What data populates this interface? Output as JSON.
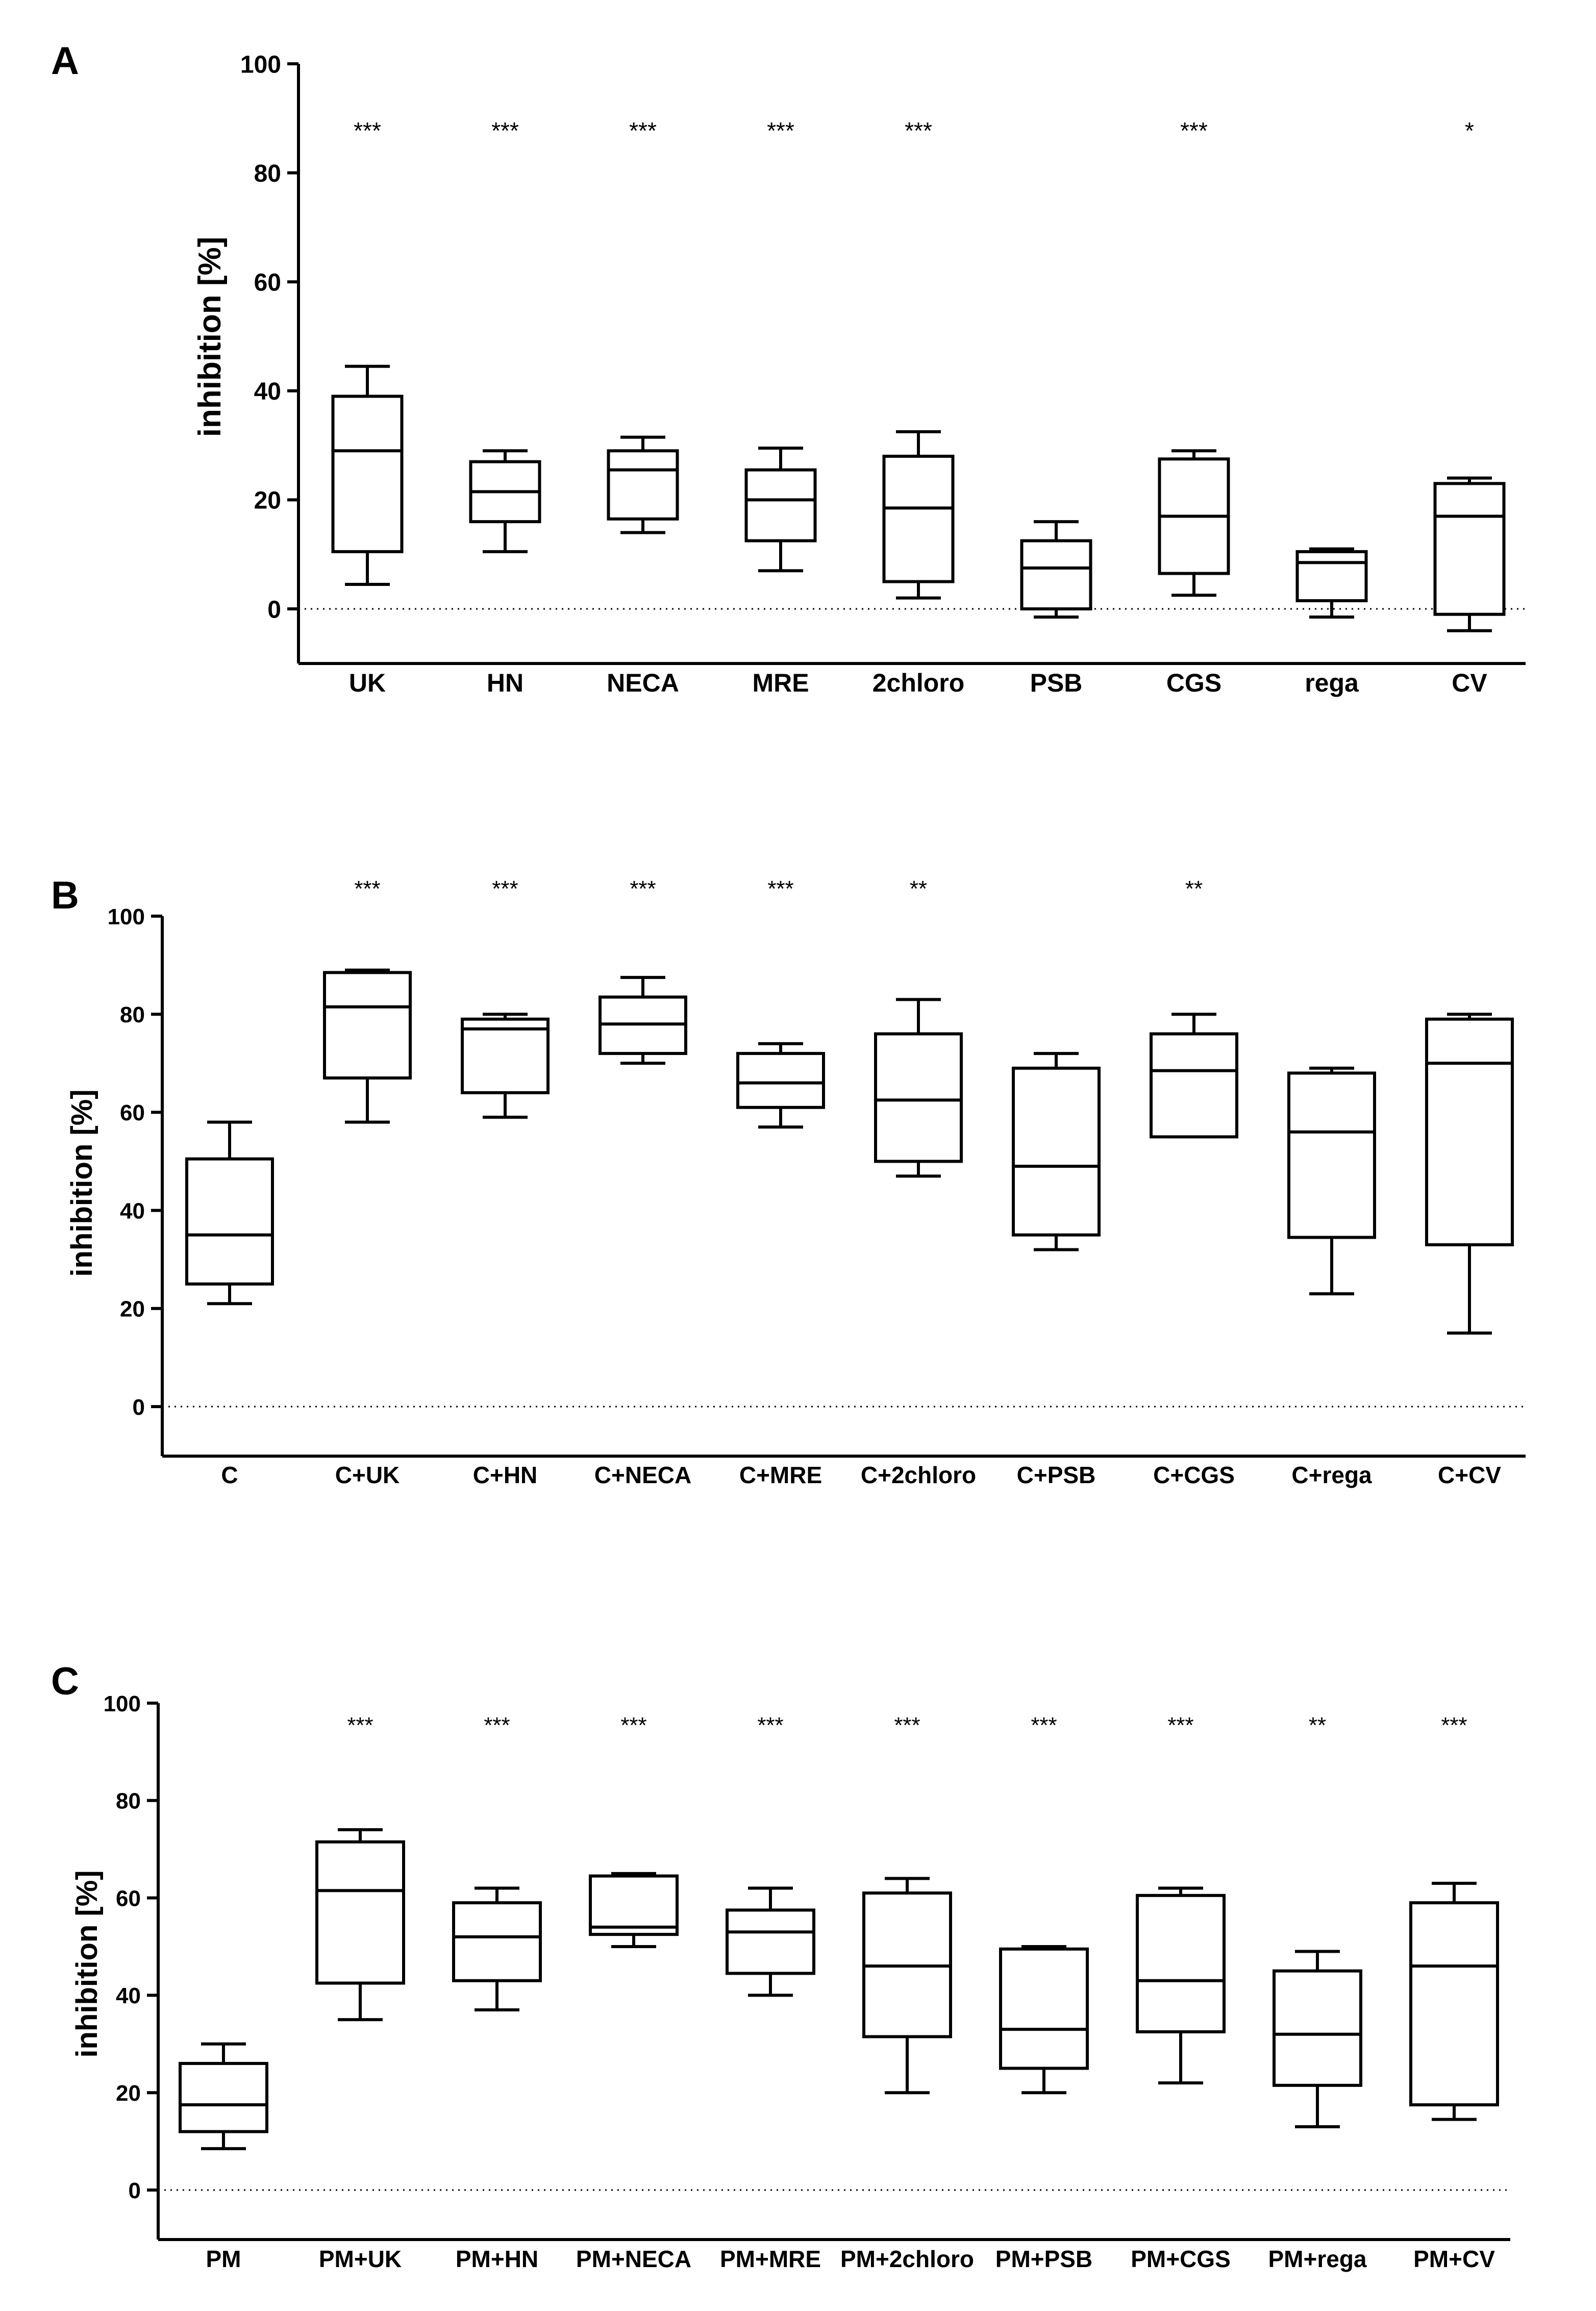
{
  "chart_data": [
    {
      "panel": "A",
      "type": "boxplot",
      "ylabel": "inhibition [%]",
      "ylim": [
        -10,
        100
      ],
      "yticks": [
        0,
        20,
        40,
        60,
        80,
        100
      ],
      "reference_line": 0,
      "categories": [
        "UK",
        "HN",
        "NECA",
        "MRE",
        "2chloro",
        "PSB",
        "CGS",
        "rega",
        "CV"
      ],
      "boxes": [
        {
          "min": 4.5,
          "q1": 10.5,
          "median": 29,
          "q3": 39,
          "max": 44.5
        },
        {
          "min": 10.5,
          "q1": 16,
          "median": 21.5,
          "q3": 27,
          "max": 29
        },
        {
          "min": 14,
          "q1": 16.5,
          "median": 25.5,
          "q3": 29,
          "max": 31.5
        },
        {
          "min": 7,
          "q1": 12.5,
          "median": 20,
          "q3": 25.5,
          "max": 29.5
        },
        {
          "min": 2,
          "q1": 5,
          "median": 18.5,
          "q3": 28,
          "max": 32.5
        },
        {
          "min": -1.5,
          "q1": 0,
          "median": 7.5,
          "q3": 12.5,
          "max": 16
        },
        {
          "min": 2.5,
          "q1": 6.5,
          "median": 17,
          "q3": 27.5,
          "max": 29
        },
        {
          "min": -1.5,
          "q1": 1.5,
          "median": 8.5,
          "q3": 10.5,
          "max": 11
        },
        {
          "min": -4,
          "q1": -1,
          "median": 17,
          "q3": 23,
          "max": 24
        }
      ],
      "significance": [
        "***",
        "***",
        "***",
        "***",
        "***",
        "",
        "***",
        "",
        "*"
      ]
    },
    {
      "panel": "B",
      "type": "boxplot",
      "ylabel": "inhibition [%]",
      "ylim": [
        -10,
        100
      ],
      "yticks": [
        0,
        20,
        40,
        60,
        80,
        100
      ],
      "reference_line": 0,
      "categories": [
        "C",
        "C+UK",
        "C+HN",
        "C+NECA",
        "C+MRE",
        "C+2chloro",
        "C+PSB",
        "C+CGS",
        "C+rega",
        "C+CV"
      ],
      "boxes": [
        {
          "min": 21,
          "q1": 25,
          "median": 35,
          "q3": 50.5,
          "max": 58
        },
        {
          "min": 58,
          "q1": 67,
          "median": 81.5,
          "q3": 88.5,
          "max": 89
        },
        {
          "min": 59,
          "q1": 64,
          "median": 77,
          "q3": 79,
          "max": 80
        },
        {
          "min": 70,
          "q1": 72,
          "median": 78,
          "q3": 83.5,
          "max": 87.5
        },
        {
          "min": 57,
          "q1": 61,
          "median": 66,
          "q3": 72,
          "max": 74
        },
        {
          "min": 47,
          "q1": 50,
          "median": 62.5,
          "q3": 76,
          "max": 83
        },
        {
          "min": 32,
          "q1": 35,
          "median": 49,
          "q3": 69,
          "max": 72
        },
        {
          "min": 55,
          "q1": 55,
          "median": 68.5,
          "q3": 76,
          "max": 80
        },
        {
          "min": 23,
          "q1": 34.5,
          "median": 56,
          "q3": 68,
          "max": 69
        },
        {
          "min": 15,
          "q1": 33,
          "median": 70,
          "q3": 79,
          "max": 80
        }
      ],
      "significance": [
        "",
        "***",
        "***",
        "***",
        "***",
        "**",
        "",
        "**",
        "",
        ""
      ]
    },
    {
      "panel": "C",
      "type": "boxplot",
      "ylabel": "inhibition [%]",
      "ylim": [
        -10,
        100
      ],
      "yticks": [
        0,
        20,
        40,
        60,
        80,
        100
      ],
      "reference_line": 0,
      "categories": [
        "PM",
        "PM+UK",
        "PM+HN",
        "PM+NECA",
        "PM+MRE",
        "PM+2chloro",
        "PM+PSB",
        "PM+CGS",
        "PM+rega",
        "PM+CV"
      ],
      "boxes": [
        {
          "min": 8.5,
          "q1": 12,
          "median": 17.5,
          "q3": 26,
          "max": 30
        },
        {
          "min": 35,
          "q1": 42.5,
          "median": 61.5,
          "q3": 71.5,
          "max": 74
        },
        {
          "min": 37,
          "q1": 43,
          "median": 52,
          "q3": 59,
          "max": 62
        },
        {
          "min": 50,
          "q1": 52.5,
          "median": 54,
          "q3": 64.5,
          "max": 65
        },
        {
          "min": 40,
          "q1": 44.5,
          "median": 53,
          "q3": 57.5,
          "max": 62
        },
        {
          "min": 20,
          "q1": 31.5,
          "median": 46,
          "q3": 61,
          "max": 64
        },
        {
          "min": 20,
          "q1": 25,
          "median": 33,
          "q3": 49.5,
          "max": 50
        },
        {
          "min": 22,
          "q1": 32.5,
          "median": 43,
          "q3": 60.5,
          "max": 62
        },
        {
          "min": 13,
          "q1": 21.5,
          "median": 32,
          "q3": 45,
          "max": 49
        },
        {
          "min": 14.5,
          "q1": 17.5,
          "median": 46,
          "q3": 59,
          "max": 63
        }
      ],
      "significance": [
        "",
        "***",
        "***",
        "***",
        "***",
        "***",
        "***",
        "***",
        "**",
        "***"
      ]
    }
  ]
}
